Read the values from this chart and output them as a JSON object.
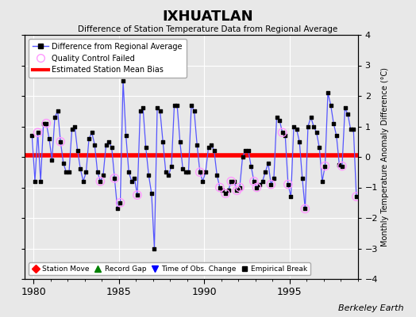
{
  "title": "IXHUATLAN",
  "subtitle": "Difference of Station Temperature Data from Regional Average",
  "ylabel": "Monthly Temperature Anomaly Difference (°C)",
  "xlabel_bottom": "Berkeley Earth",
  "bias": 0.05,
  "ylim": [
    -4,
    4
  ],
  "xlim": [
    1979.5,
    1999.0
  ],
  "xticks": [
    1980,
    1985,
    1990,
    1995
  ],
  "bg_color": "#e8e8e8",
  "grid_color": "#ffffff",
  "line_color": "#5555ff",
  "dot_color": "#000000",
  "bias_color": "#ff0000",
  "qc_color": "#ff99ff",
  "data": [
    [
      1979.917,
      0.7
    ],
    [
      1980.083,
      -0.8
    ],
    [
      1980.25,
      0.8
    ],
    [
      1980.417,
      -0.8
    ],
    [
      1980.583,
      1.1
    ],
    [
      1980.75,
      1.1
    ],
    [
      1980.917,
      0.6
    ],
    [
      1981.083,
      -0.1
    ],
    [
      1981.25,
      1.3
    ],
    [
      1981.417,
      1.5
    ],
    [
      1981.583,
      0.5
    ],
    [
      1981.75,
      -0.2
    ],
    [
      1981.917,
      -0.5
    ],
    [
      1982.083,
      -0.5
    ],
    [
      1982.25,
      0.9
    ],
    [
      1982.417,
      1.0
    ],
    [
      1982.583,
      0.2
    ],
    [
      1982.75,
      -0.4
    ],
    [
      1982.917,
      -0.8
    ],
    [
      1983.083,
      -0.5
    ],
    [
      1983.25,
      0.6
    ],
    [
      1983.417,
      0.8
    ],
    [
      1983.583,
      0.4
    ],
    [
      1983.75,
      -0.5
    ],
    [
      1983.917,
      -0.8
    ],
    [
      1984.083,
      -0.6
    ],
    [
      1984.25,
      0.4
    ],
    [
      1984.417,
      0.5
    ],
    [
      1984.583,
      0.3
    ],
    [
      1984.75,
      -0.7
    ],
    [
      1984.917,
      -1.7
    ],
    [
      1985.083,
      -1.5
    ],
    [
      1985.25,
      2.5
    ],
    [
      1985.417,
      0.7
    ],
    [
      1985.583,
      -0.5
    ],
    [
      1985.75,
      -0.8
    ],
    [
      1985.917,
      -0.7
    ],
    [
      1986.083,
      -1.25
    ],
    [
      1986.25,
      1.5
    ],
    [
      1986.417,
      1.6
    ],
    [
      1986.583,
      0.3
    ],
    [
      1986.75,
      -0.6
    ],
    [
      1986.917,
      -1.2
    ],
    [
      1987.083,
      -3.0
    ],
    [
      1987.25,
      1.6
    ],
    [
      1987.417,
      1.5
    ],
    [
      1987.583,
      0.5
    ],
    [
      1987.75,
      -0.5
    ],
    [
      1987.917,
      -0.6
    ],
    [
      1988.083,
      -0.3
    ],
    [
      1988.25,
      1.7
    ],
    [
      1988.417,
      1.7
    ],
    [
      1988.583,
      0.5
    ],
    [
      1988.75,
      -0.4
    ],
    [
      1988.917,
      -0.5
    ],
    [
      1989.083,
      -0.5
    ],
    [
      1989.25,
      1.7
    ],
    [
      1989.417,
      1.5
    ],
    [
      1989.583,
      0.4
    ],
    [
      1989.75,
      -0.5
    ],
    [
      1989.917,
      -0.8
    ],
    [
      1990.083,
      -0.5
    ],
    [
      1990.25,
      0.3
    ],
    [
      1990.417,
      0.4
    ],
    [
      1990.583,
      0.2
    ],
    [
      1990.75,
      -0.6
    ],
    [
      1990.917,
      -1.0
    ],
    [
      1991.083,
      -1.1
    ],
    [
      1991.25,
      -1.2
    ],
    [
      1991.417,
      -1.1
    ],
    [
      1991.583,
      -0.8
    ],
    [
      1991.75,
      -0.8
    ],
    [
      1991.917,
      -1.1
    ],
    [
      1992.083,
      -1.0
    ],
    [
      1992.25,
      0.0
    ],
    [
      1992.417,
      0.2
    ],
    [
      1992.583,
      0.2
    ],
    [
      1992.75,
      -0.3
    ],
    [
      1992.917,
      -0.8
    ],
    [
      1993.083,
      -1.0
    ],
    [
      1993.25,
      -0.9
    ],
    [
      1993.417,
      -0.8
    ],
    [
      1993.583,
      -0.5
    ],
    [
      1993.75,
      -0.2
    ],
    [
      1993.917,
      -0.9
    ],
    [
      1994.083,
      -0.7
    ],
    [
      1994.25,
      1.3
    ],
    [
      1994.417,
      1.2
    ],
    [
      1994.583,
      0.8
    ],
    [
      1994.75,
      0.7
    ],
    [
      1994.917,
      -0.9
    ],
    [
      1995.083,
      -1.3
    ],
    [
      1995.25,
      1.0
    ],
    [
      1995.417,
      0.9
    ],
    [
      1995.583,
      0.5
    ],
    [
      1995.75,
      -0.7
    ],
    [
      1995.917,
      -1.7
    ],
    [
      1996.083,
      1.0
    ],
    [
      1996.25,
      1.3
    ],
    [
      1996.417,
      1.0
    ],
    [
      1996.583,
      0.8
    ],
    [
      1996.75,
      0.3
    ],
    [
      1996.917,
      -0.8
    ],
    [
      1997.083,
      -0.3
    ],
    [
      1997.25,
      2.1
    ],
    [
      1997.417,
      1.7
    ],
    [
      1997.583,
      1.1
    ],
    [
      1997.75,
      0.7
    ],
    [
      1997.917,
      -0.25
    ],
    [
      1998.083,
      -0.3
    ],
    [
      1998.25,
      1.6
    ],
    [
      1998.417,
      1.4
    ],
    [
      1998.583,
      0.9
    ],
    [
      1998.75,
      0.9
    ],
    [
      1998.917,
      -1.3
    ]
  ],
  "qc_points": [
    [
      1980.25,
      0.8
    ],
    [
      1980.75,
      1.1
    ],
    [
      1981.583,
      0.5
    ],
    [
      1983.917,
      -0.8
    ],
    [
      1984.75,
      -0.7
    ],
    [
      1985.083,
      -1.5
    ],
    [
      1986.083,
      -1.25
    ],
    [
      1989.75,
      -0.5
    ],
    [
      1990.917,
      -1.0
    ],
    [
      1991.25,
      -1.2
    ],
    [
      1991.583,
      -0.8
    ],
    [
      1991.917,
      -1.1
    ],
    [
      1992.083,
      -1.0
    ],
    [
      1992.917,
      -0.8
    ],
    [
      1993.083,
      -1.0
    ],
    [
      1993.917,
      -0.9
    ],
    [
      1994.583,
      0.8
    ],
    [
      1994.917,
      -0.9
    ],
    [
      1995.917,
      -1.7
    ],
    [
      1997.083,
      -0.3
    ],
    [
      1998.083,
      -0.3
    ],
    [
      1998.917,
      -1.3
    ]
  ]
}
